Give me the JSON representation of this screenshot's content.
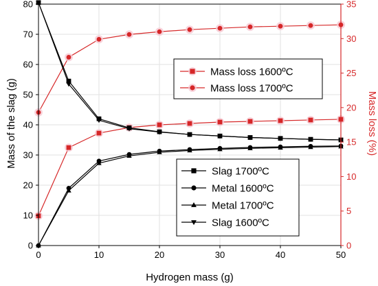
{
  "chart_data": {
    "type": "line",
    "x": [
      0,
      5,
      10,
      15,
      20,
      25,
      30,
      35,
      40,
      45,
      50
    ],
    "xlabel": "Hydrogen mass (g)",
    "ylabel_left": "Mass of the slag (g)",
    "ylabel_right": "Mass loss (%)",
    "xlim": [
      0,
      50
    ],
    "ylim_left": [
      0,
      80
    ],
    "ylim_right": [
      0,
      35
    ],
    "x_ticks": [
      "0",
      "10",
      "20",
      "30",
      "40",
      "50"
    ],
    "y_left_ticks": [
      "0",
      "10",
      "20",
      "30",
      "40",
      "50",
      "60",
      "70",
      "80"
    ],
    "y_right_ticks": [
      "0",
      "5",
      "10",
      "15",
      "20",
      "25",
      "30",
      "35"
    ],
    "grid": true,
    "left_axis_color": "#000000",
    "right_axis_color": "#d62728",
    "series_left": [
      {
        "name": "Slag 1700ºC",
        "marker": "square",
        "color": "#000000",
        "values": [
          80.5,
          54.5,
          42.0,
          39.0,
          37.7,
          36.8,
          36.3,
          35.8,
          35.5,
          35.2,
          35.0
        ]
      },
      {
        "name": "Metal 1600ºC",
        "marker": "circle",
        "color": "#000000",
        "values": [
          0.0,
          19.0,
          28.0,
          30.2,
          31.3,
          31.8,
          32.2,
          32.5,
          32.7,
          32.9,
          33.0
        ]
      },
      {
        "name": "Metal 1700ºC",
        "marker": "triangle-up",
        "color": "#000000",
        "values": [
          0.0,
          18.2,
          27.3,
          29.7,
          30.9,
          31.5,
          31.9,
          32.2,
          32.4,
          32.6,
          32.8
        ]
      },
      {
        "name": "Slag 1600ºC",
        "marker": "triangle-down",
        "color": "#000000",
        "values": [
          80.5,
          53.5,
          41.5,
          38.7,
          37.6,
          36.8,
          36.3,
          35.8,
          35.5,
          35.2,
          35.0
        ]
      }
    ],
    "series_right": [
      {
        "name": "Mass loss 1600ºC",
        "marker": "square",
        "color": "#d62728",
        "values": [
          4.3,
          14.2,
          16.3,
          17.1,
          17.5,
          17.7,
          17.9,
          18.0,
          18.1,
          18.2,
          18.3
        ]
      },
      {
        "name": "Mass loss 1700ºC",
        "marker": "circle",
        "color": "#d62728",
        "values": [
          19.3,
          27.3,
          29.9,
          30.6,
          31.0,
          31.3,
          31.5,
          31.7,
          31.8,
          31.9,
          32.0
        ]
      }
    ]
  }
}
